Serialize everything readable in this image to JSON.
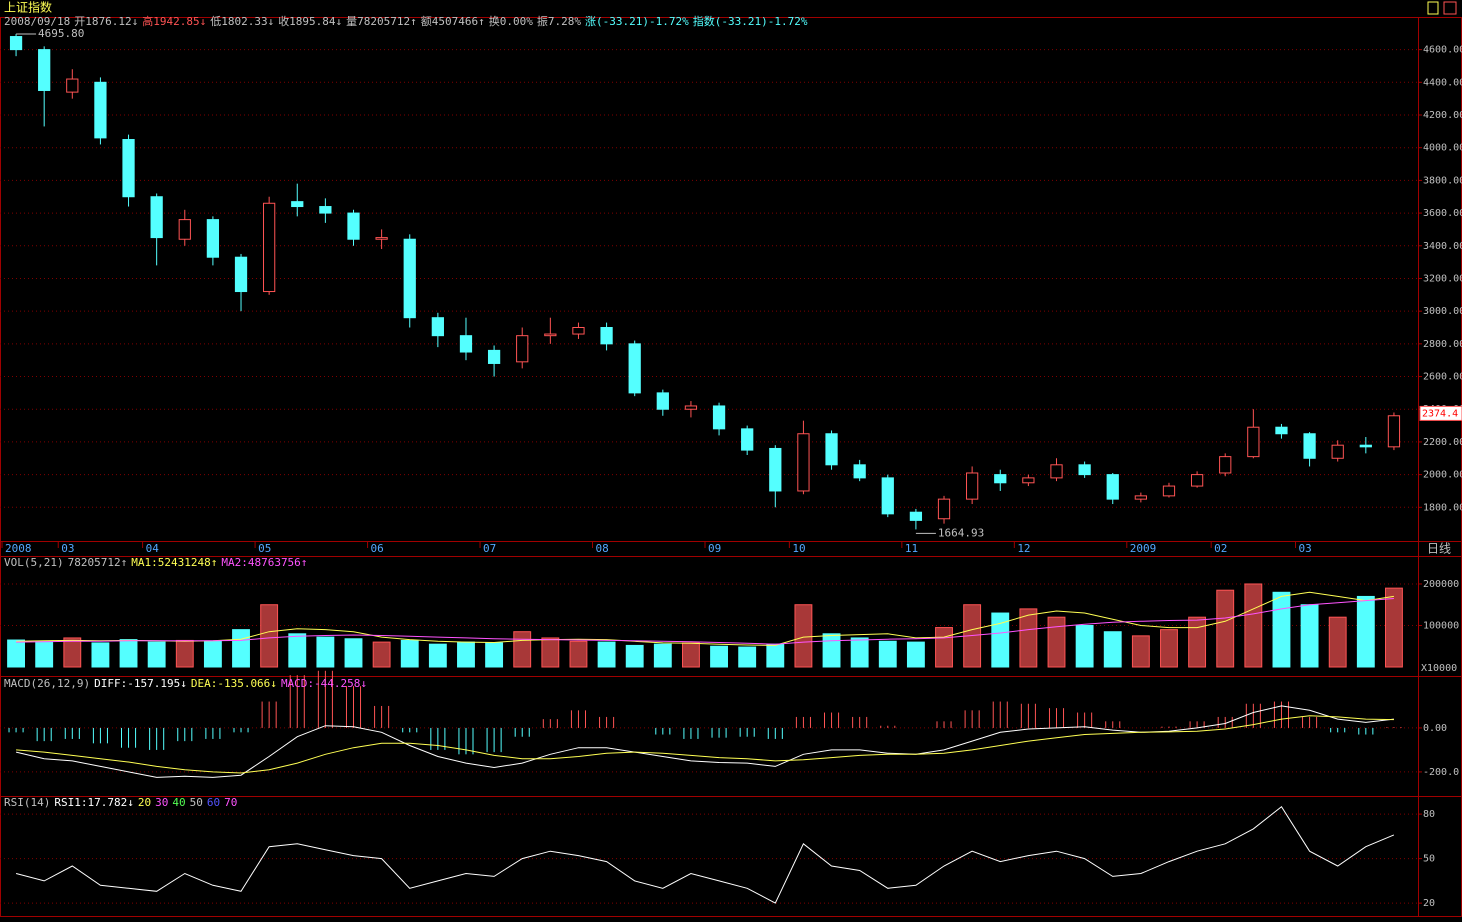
{
  "header": {
    "title": "上证指数",
    "info": [
      "2008/09/18",
      "开1876.12↓",
      "高1942.85↓",
      "低1802.33↓",
      "收1895.84↓",
      "量78205712↑",
      "额4507466↑",
      "换0.00%",
      "振7.28%",
      "涨(-33.21)-1.72%",
      "指数(-33.21)-1.72%"
    ]
  },
  "chart_data": [
    {
      "type": "candlestick",
      "period_label": "日线",
      "categories": [
        "2008",
        null,
        "03",
        null,
        null,
        "04",
        null,
        null,
        null,
        "05",
        null,
        null,
        null,
        "06",
        null,
        null,
        null,
        "07",
        null,
        null,
        null,
        "08",
        null,
        null,
        null,
        "09",
        null,
        null,
        "10",
        null,
        null,
        null,
        "11",
        null,
        null,
        null,
        "12",
        null,
        null,
        null,
        "2009",
        null,
        null,
        "02",
        null,
        null,
        "03",
        null,
        null,
        null
      ],
      "open": [
        4680,
        4600,
        4340,
        4400,
        4050,
        3700,
        3440,
        3560,
        3330,
        3120,
        3670,
        3640,
        3600,
        3440,
        3440,
        2960,
        2850,
        2760,
        2690,
        2850,
        2860,
        2900,
        2800,
        2500,
        2400,
        2420,
        2280,
        2160,
        1900,
        2250,
        2060,
        1980,
        1770,
        1730,
        1850,
        2000,
        1950,
        1980,
        2060,
        2000,
        1850,
        1870,
        1930,
        2010,
        2110,
        2290,
        2250,
        2100,
        2180,
        2170
      ],
      "high": [
        4695.8,
        4620,
        4480,
        4430,
        4080,
        3720,
        3620,
        3580,
        3350,
        3700,
        3780,
        3690,
        3620,
        3500,
        3470,
        2990,
        2960,
        2790,
        2900,
        2960,
        2930,
        2930,
        2820,
        2520,
        2450,
        2440,
        2300,
        2180,
        2330,
        2270,
        2090,
        2000,
        1790,
        1870,
        2050,
        2030,
        2000,
        2100,
        2080,
        2010,
        1890,
        1950,
        2020,
        2130,
        2400,
        2310,
        2260,
        2210,
        2230,
        2380
      ],
      "low": [
        4560,
        4130,
        4300,
        4020,
        3640,
        3280,
        3400,
        3280,
        3000,
        3100,
        3580,
        3540,
        3400,
        3380,
        2900,
        2780,
        2700,
        2600,
        2650,
        2800,
        2830,
        2760,
        2480,
        2360,
        2350,
        2240,
        2120,
        1800,
        1880,
        2030,
        1960,
        1740,
        1664.93,
        1700,
        1820,
        1900,
        1930,
        1960,
        1980,
        1820,
        1830,
        1860,
        1920,
        1990,
        2100,
        2220,
        2050,
        2080,
        2130,
        2150
      ],
      "close": [
        4600,
        4350,
        4420,
        4060,
        3700,
        3450,
        3560,
        3330,
        3120,
        3660,
        3640,
        3600,
        3440,
        3450,
        2960,
        2850,
        2750,
        2680,
        2850,
        2860,
        2900,
        2800,
        2500,
        2400,
        2420,
        2280,
        2150,
        1900,
        2250,
        2060,
        1980,
        1760,
        1720,
        1850,
        2010,
        1950,
        1980,
        2060,
        2000,
        1850,
        1870,
        1930,
        2000,
        2110,
        2290,
        2250,
        2100,
        2180,
        2170,
        2360
      ],
      "up_color": "#ff5454",
      "down_color": "#54ffff",
      "ylim": [
        1600,
        4720
      ],
      "yticks": [
        {
          "value": 1800,
          "label": "1800.00"
        },
        {
          "value": 2000,
          "label": "2000.00"
        },
        {
          "value": 2200,
          "label": "2200.00"
        },
        {
          "value": 2400,
          "label": "2400.00"
        },
        {
          "value": 2600,
          "label": "2600.00"
        },
        {
          "value": 2800,
          "label": "2800.00"
        },
        {
          "value": 3000,
          "label": "3000.00"
        },
        {
          "value": 3200,
          "label": "3200.00"
        },
        {
          "value": 3400,
          "label": "3400.00"
        },
        {
          "value": 3600,
          "label": "3600.00"
        },
        {
          "value": 3800,
          "label": "3800.00"
        },
        {
          "value": 4000,
          "label": "4000.00"
        },
        {
          "value": 4200,
          "label": "4200.00"
        },
        {
          "value": 4400,
          "label": "4400.00"
        },
        {
          "value": 4600,
          "label": "4600.00"
        }
      ],
      "grid": true,
      "high_mark": {
        "value": 4695.8,
        "label": "4695.80"
      },
      "low_mark": 1664.93,
      "last_price": 2374.4
    },
    {
      "type": "bar",
      "title": "VOL(5,21)",
      "readout": "78205712↑",
      "unit_label": "X10000",
      "values": [
        65000,
        62000,
        70000,
        58000,
        66000,
        60000,
        64000,
        62000,
        90000,
        150000,
        80000,
        72000,
        68000,
        60000,
        64000,
        55000,
        60000,
        58000,
        85000,
        70000,
        62000,
        60000,
        52000,
        55000,
        58000,
        50000,
        48000,
        55000,
        150000,
        80000,
        70000,
        62000,
        60000,
        95000,
        150000,
        130000,
        140000,
        120000,
        100000,
        85000,
        75000,
        90000,
        120000,
        185000,
        200000,
        180000,
        150000,
        120000,
        170000,
        190000
      ],
      "series": [
        {
          "name": "MA1",
          "readout": ":52431248↑",
          "color": "#ffff54",
          "values": [
            62000,
            63000,
            64000,
            63000,
            64000,
            63000,
            62000,
            63000,
            67000,
            85000,
            92000,
            90000,
            85000,
            72000,
            66000,
            62000,
            60000,
            59000,
            64000,
            66000,
            67000,
            66000,
            62000,
            58000,
            57000,
            55000,
            53000,
            52000,
            72000,
            76000,
            78000,
            80000,
            70000,
            72000,
            90000,
            105000,
            125000,
            135000,
            130000,
            115000,
            100000,
            95000,
            95000,
            110000,
            140000,
            170000,
            180000,
            170000,
            160000,
            170000
          ]
        },
        {
          "name": "MA2",
          "readout": ":48763756↑",
          "color": "#ff54ff",
          "values": [
            60000,
            61000,
            62000,
            62000,
            63000,
            63000,
            63000,
            63000,
            64000,
            70000,
            74000,
            76000,
            77000,
            76000,
            74000,
            72000,
            70000,
            68000,
            67000,
            66000,
            65000,
            64000,
            63000,
            62000,
            61000,
            59000,
            57000,
            55000,
            60000,
            63000,
            65000,
            67000,
            68000,
            70000,
            76000,
            82000,
            90000,
            97000,
            103000,
            108000,
            110000,
            112000,
            113000,
            118000,
            128000,
            140000,
            150000,
            155000,
            160000,
            165000
          ]
        }
      ],
      "ylim": [
        0,
        265000
      ],
      "yticks": [
        100000,
        200000
      ],
      "grid": true
    },
    {
      "type": "macd",
      "title": "MACD(26,12,9)",
      "values": [
        -20,
        -60,
        -50,
        -70,
        -90,
        -100,
        -60,
        -50,
        -20,
        120,
        240,
        260,
        190,
        100,
        -20,
        -100,
        -120,
        -110,
        -40,
        40,
        80,
        50,
        0,
        -30,
        -50,
        -44.258,
        -40,
        -50,
        50,
        70,
        50,
        10,
        0,
        30,
        80,
        120,
        110,
        90,
        70,
        30,
        0,
        6,
        30,
        50,
        110,
        120,
        50,
        -20,
        -30,
        4
      ],
      "bar_name": "MACD",
      "bar_readout": ":-44.258↓",
      "bar_color": "#ff54ff",
      "series": [
        {
          "name": "DIFF",
          "readout": ":-157.195↓",
          "color": "#ffffff",
          "values": [
            -110,
            -140,
            -150,
            -175,
            -200,
            -225,
            -220,
            -225,
            -215,
            -130,
            -40,
            10,
            5,
            -20,
            -80,
            -130,
            -160,
            -180,
            -160,
            -120,
            -90,
            -90,
            -110,
            -130,
            -150,
            -157.195,
            -160,
            -175,
            -120,
            -100,
            -100,
            -115,
            -120,
            -100,
            -60,
            -20,
            -5,
            0,
            5,
            -10,
            -20,
            -15,
            0,
            20,
            70,
            100,
            80,
            40,
            25,
            40
          ]
        },
        {
          "name": "DEA",
          "readout": ":-135.066↓",
          "color": "#ffff54",
          "values": [
            -100,
            -110,
            -125,
            -140,
            -155,
            -175,
            -190,
            -200,
            -205,
            -190,
            -160,
            -120,
            -90,
            -70,
            -70,
            -80,
            -100,
            -125,
            -140,
            -140,
            -130,
            -115,
            -110,
            -115,
            -125,
            -135.066,
            -140,
            -150,
            -145,
            -135,
            -125,
            -120,
            -120,
            -115,
            -100,
            -80,
            -60,
            -45,
            -30,
            -25,
            -20,
            -18,
            -15,
            -5,
            15,
            40,
            55,
            50,
            40,
            38
          ]
        }
      ],
      "ylim": [
        -305,
        218
      ],
      "yticks": [
        {
          "value": 0,
          "label": "0.00"
        },
        {
          "value": -200,
          "label": "-200.0"
        }
      ],
      "grid": true
    },
    {
      "type": "line",
      "title": "RSI(14)",
      "series": [
        {
          "name": "RSI1",
          "readout": ":17.782↓",
          "color": "#ffffff",
          "values": [
            40,
            35,
            45,
            32,
            30,
            28,
            40,
            32,
            28,
            58,
            60,
            56,
            52,
            50,
            30,
            35,
            40,
            38,
            50,
            55,
            52,
            48,
            35,
            30,
            40,
            35,
            30,
            20,
            60,
            45,
            42,
            30,
            32,
            45,
            55,
            48,
            52,
            55,
            50,
            38,
            40,
            48,
            55,
            60,
            70,
            85,
            55,
            45,
            58,
            66
          ]
        }
      ],
      "levels": [
        20,
        30,
        40,
        50,
        60,
        70
      ],
      "level_colors": [
        "#ffff54",
        "#ff54ff",
        "#54ff54",
        "#c0c0c0",
        "#5454ff",
        "#ff54ff"
      ],
      "ylim": [
        12,
        89.5
      ],
      "yticks": [
        20,
        50,
        80
      ],
      "grid": true
    }
  ]
}
